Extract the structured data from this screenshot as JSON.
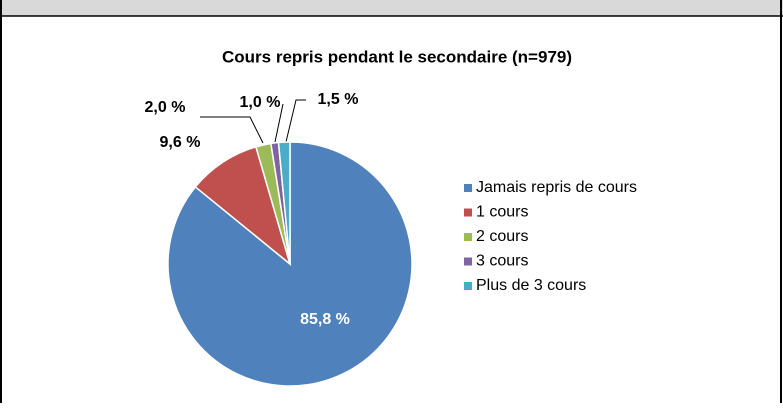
{
  "chart_data": {
    "type": "pie",
    "title": "Cours repris pendant le secondaire  (n=979)",
    "categories": [
      "Jamais repris de cours",
      "1 cours",
      "2 cours",
      "3 cours",
      "Plus de 3 cours"
    ],
    "values": [
      85.8,
      9.6,
      2.0,
      1.0,
      1.5
    ],
    "value_labels": [
      "85,8 %",
      "9,6 %",
      "2,0 %",
      "1,0 %",
      "1,5 %"
    ],
    "colors": [
      "#4f81bd",
      "#c0504d",
      "#9bbb59",
      "#8064a2",
      "#4bacc6"
    ],
    "legend": "right"
  }
}
